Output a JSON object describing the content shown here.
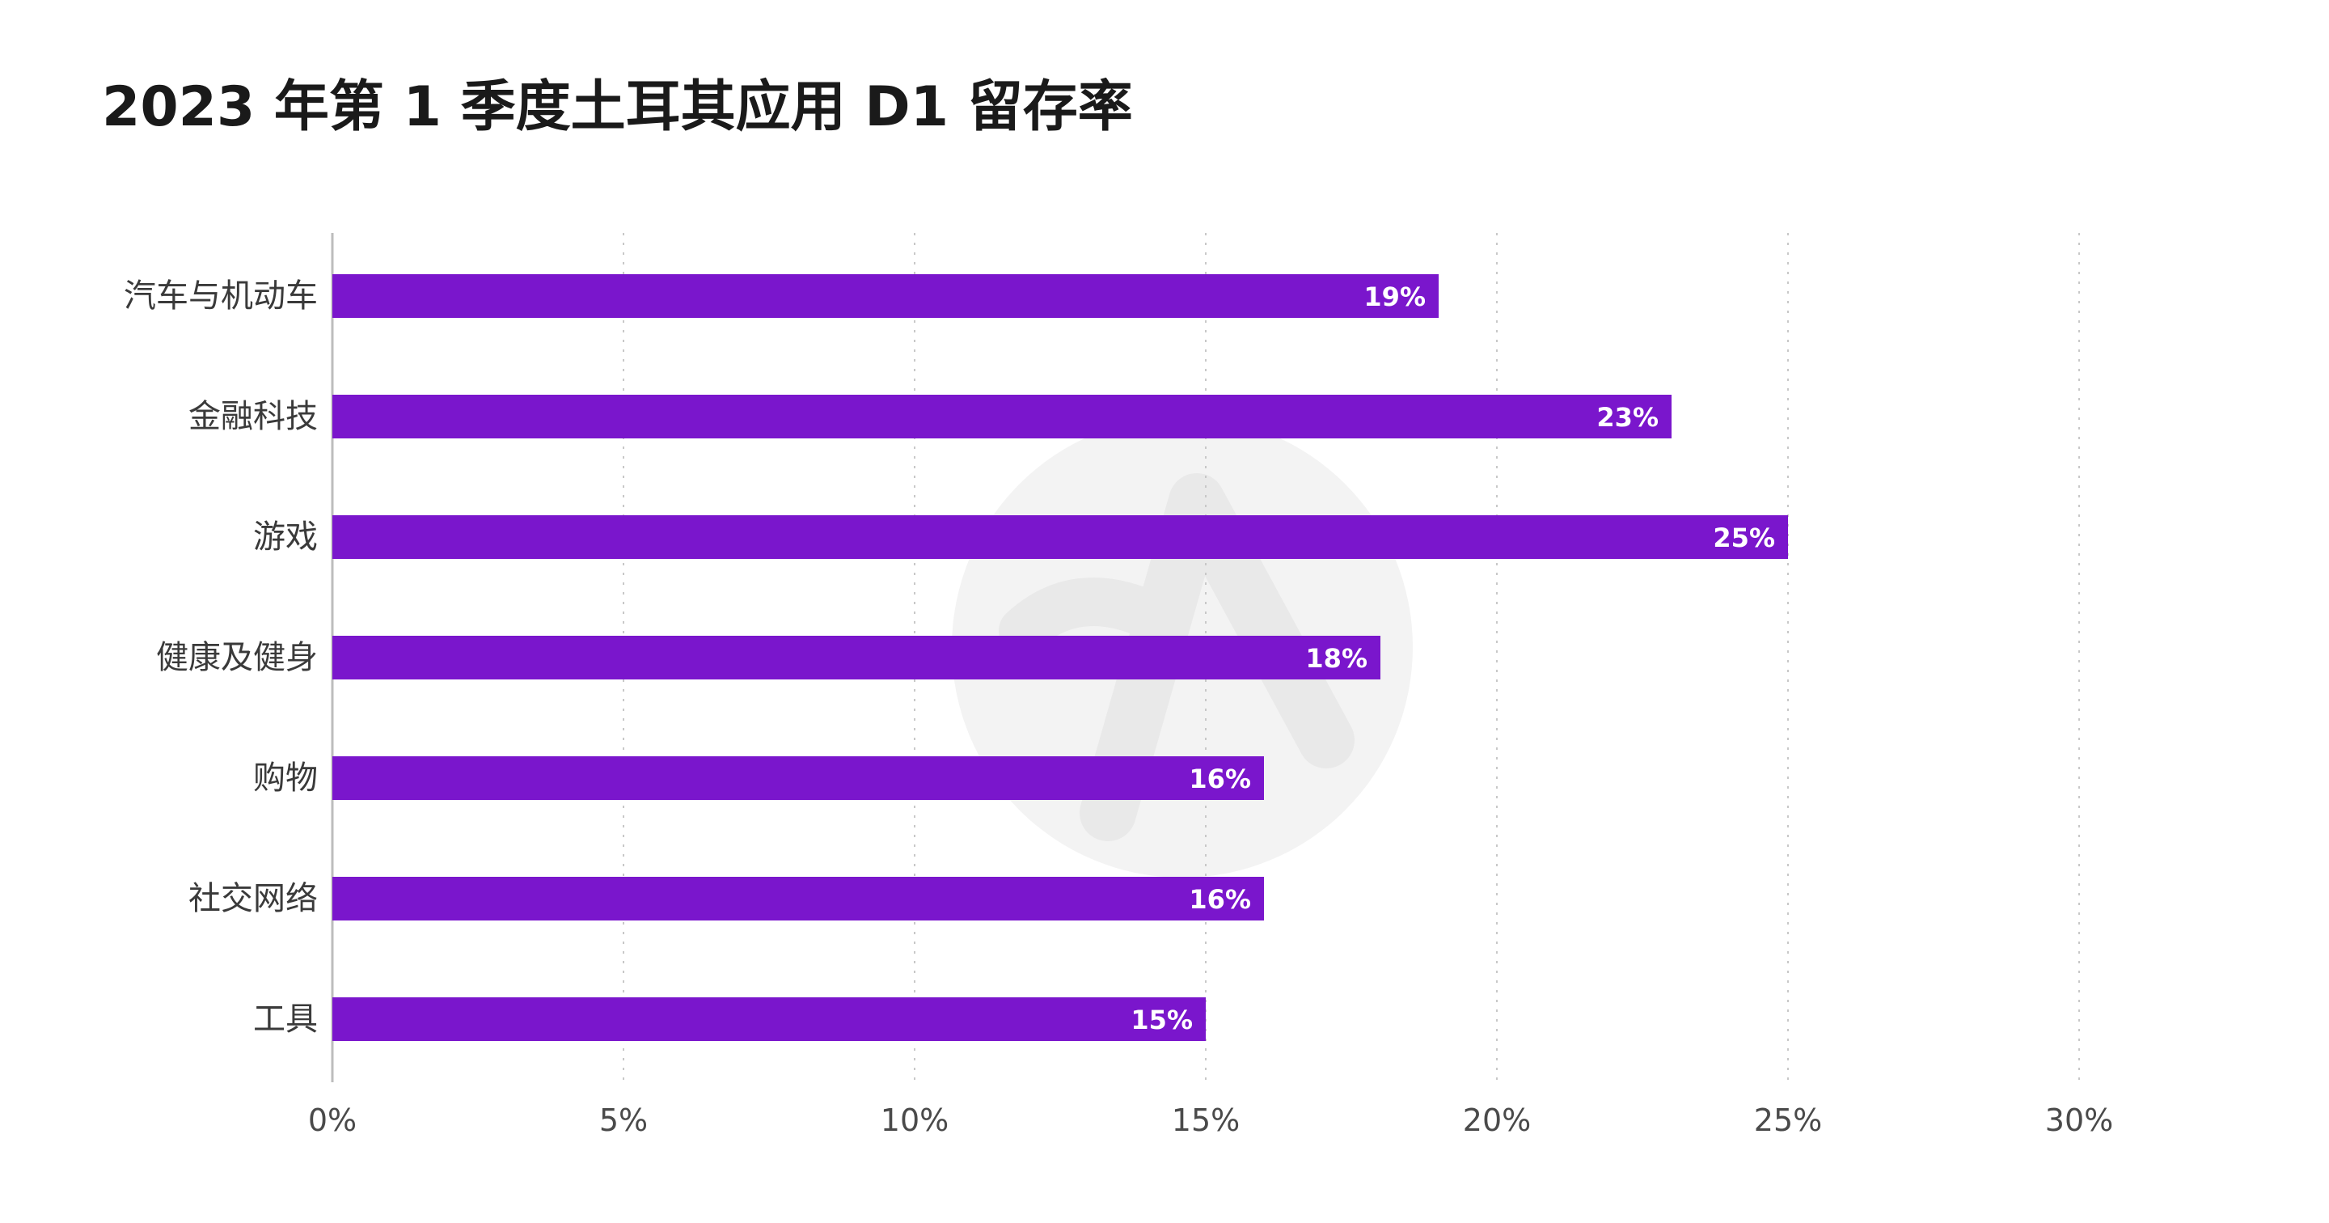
{
  "chart_data": {
    "type": "bar",
    "orientation": "horizontal",
    "title": "2023 年第 1 季度土耳其应用 D1 留存率",
    "categories": [
      "汽车与机动车",
      "金融科技",
      "游戏",
      "健康及健身",
      "购物",
      "社交网络",
      "工具"
    ],
    "values": [
      19,
      23,
      25,
      18,
      16,
      16,
      15
    ],
    "data_labels": [
      "19%",
      "23%",
      "25%",
      "18%",
      "16%",
      "16%",
      "15%"
    ],
    "xlim": [
      0,
      30
    ],
    "x_ticks": [
      0,
      5,
      10,
      15,
      20,
      25,
      30
    ],
    "x_tick_labels": [
      "0%",
      "5%",
      "10%",
      "15%",
      "20%",
      "25%",
      "30%"
    ],
    "grid": "vertical-dotted",
    "bar_color": "#7a16cc",
    "legend": "none"
  }
}
